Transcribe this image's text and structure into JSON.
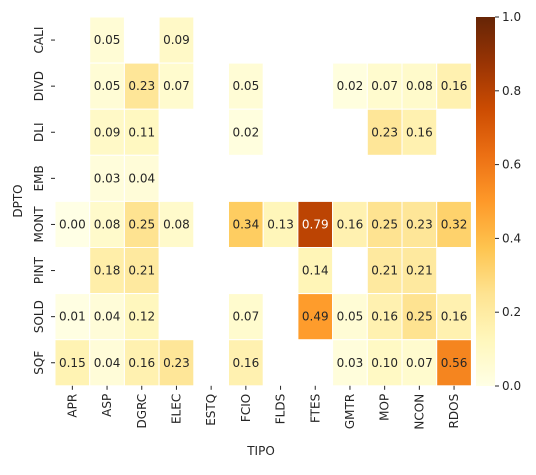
{
  "chart_data": {
    "type": "heatmap",
    "title": "",
    "xlabel": "TIPO",
    "ylabel": "DPTO",
    "x_categories": [
      "APR",
      "ASP",
      "DGRC",
      "ELEC",
      "ESTQ",
      "FCIO",
      "FLDS",
      "FTES",
      "GMTR",
      "MOP",
      "NCON",
      "RDOS"
    ],
    "y_categories": [
      "CALI",
      "DIVD",
      "DLI",
      "EMB",
      "MONT",
      "PINT",
      "SOLD",
      "SQF"
    ],
    "values": [
      [
        null,
        0.05,
        null,
        0.09,
        null,
        null,
        null,
        null,
        null,
        null,
        null,
        null
      ],
      [
        null,
        0.05,
        0.23,
        0.07,
        null,
        0.05,
        null,
        null,
        0.02,
        0.07,
        0.08,
        0.16
      ],
      [
        null,
        0.09,
        0.11,
        null,
        null,
        0.02,
        null,
        null,
        null,
        0.23,
        0.16,
        null
      ],
      [
        null,
        0.03,
        0.04,
        null,
        null,
        null,
        null,
        null,
        null,
        null,
        null,
        null
      ],
      [
        0.0,
        0.08,
        0.25,
        0.08,
        null,
        0.34,
        0.13,
        0.79,
        0.16,
        0.25,
        0.23,
        0.32
      ],
      [
        null,
        0.18,
        0.21,
        null,
        null,
        null,
        null,
        0.14,
        null,
        0.21,
        0.21,
        null
      ],
      [
        0.01,
        0.04,
        0.12,
        null,
        null,
        0.07,
        null,
        0.49,
        0.05,
        0.16,
        0.25,
        0.16
      ],
      [
        0.15,
        0.04,
        0.16,
        0.23,
        null,
        0.16,
        null,
        null,
        0.03,
        0.1,
        0.07,
        0.56
      ]
    ],
    "value_format": "0.00",
    "colorscale": "YlOrBr",
    "colorbar": {
      "range": [
        0,
        1
      ],
      "ticks": [
        "0.0",
        "0.2",
        "0.4",
        "0.6",
        "0.8",
        "1.0"
      ]
    },
    "grid": false
  }
}
